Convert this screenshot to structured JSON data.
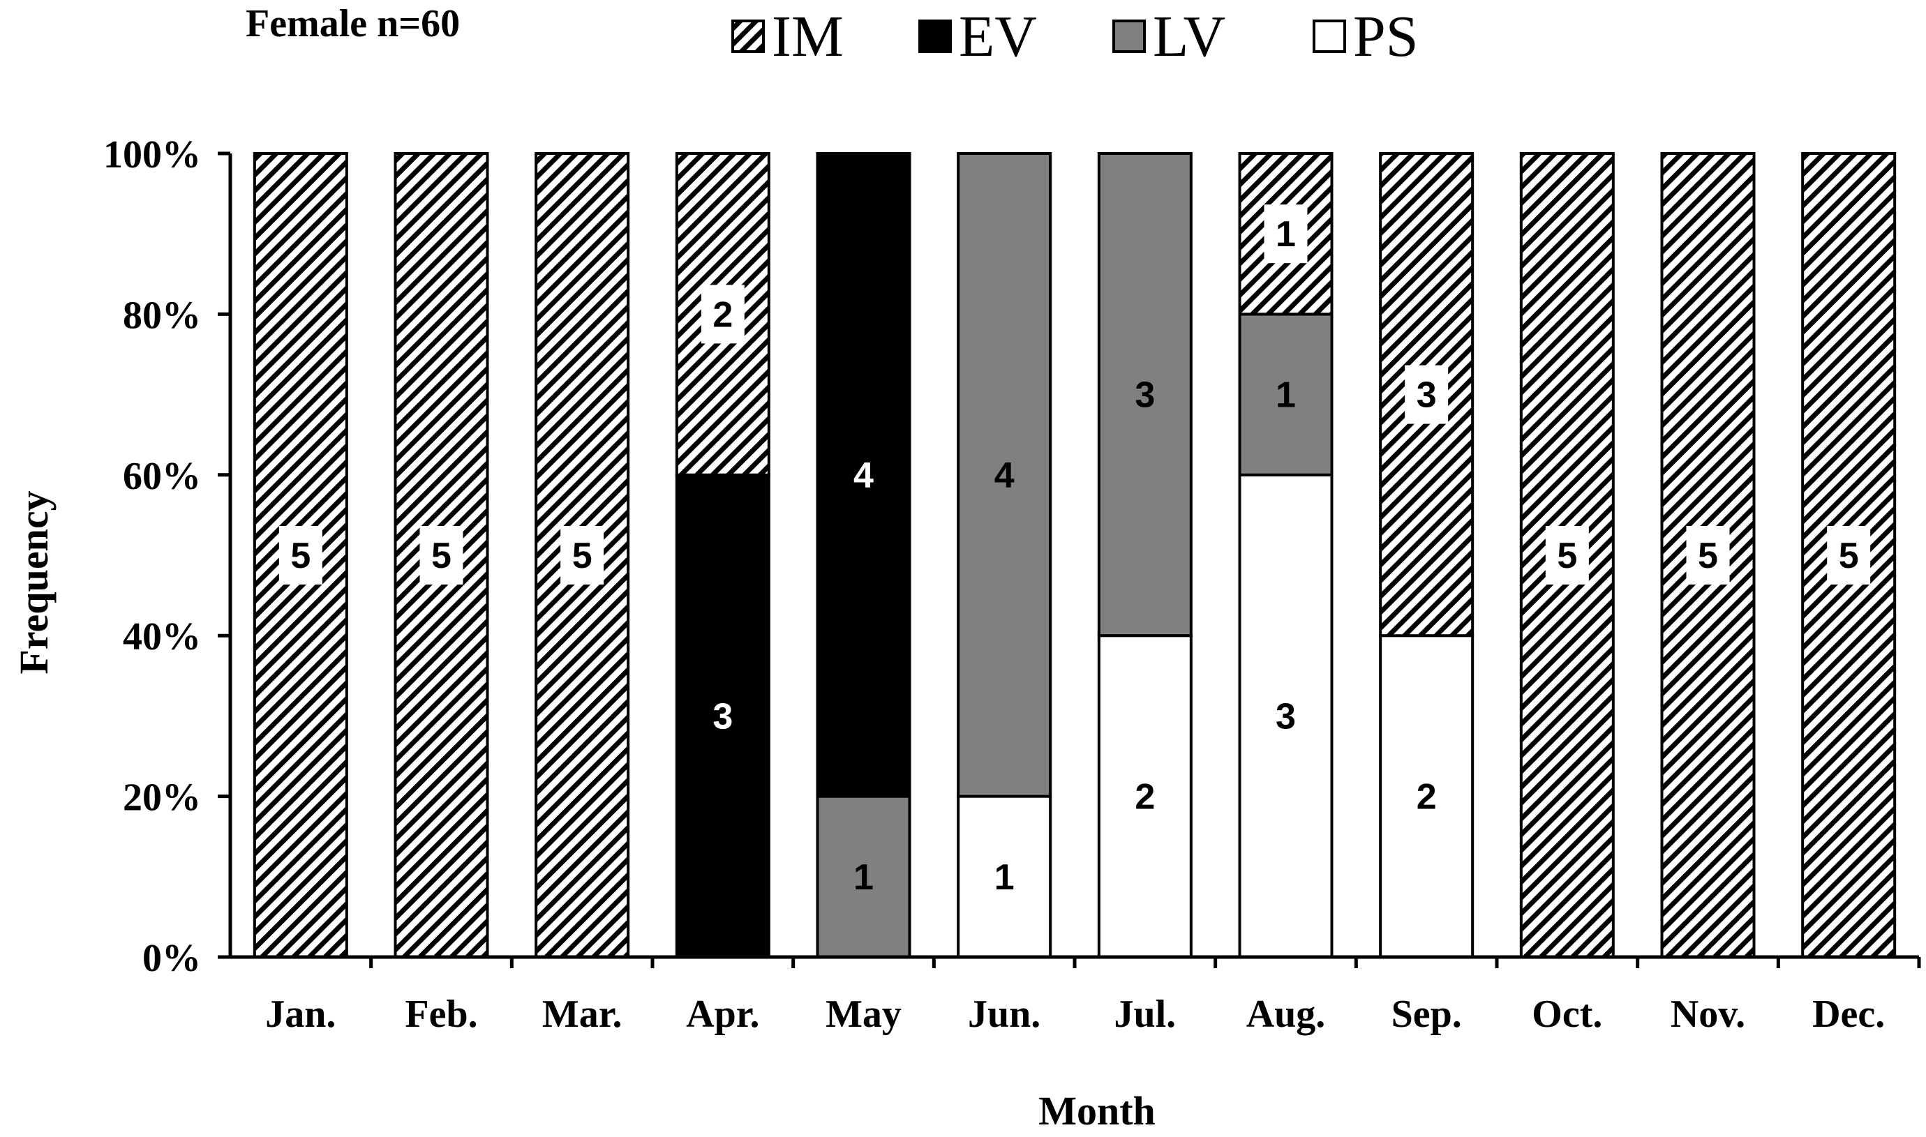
{
  "chart_data": {
    "type": "bar",
    "stacked": true,
    "percent": true,
    "title": "Female n=60",
    "xlabel": "Month",
    "ylabel": "Frequency",
    "categories": [
      "Jan.",
      "Feb.",
      "Mar.",
      "Apr.",
      "May",
      "Jun.",
      "Jul.",
      "Aug.",
      "Sep.",
      "Oct.",
      "Nov.",
      "Dec."
    ],
    "series": [
      {
        "name": "PS",
        "values": [
          0,
          0,
          0,
          0,
          0,
          1,
          2,
          3,
          2,
          0,
          0,
          0
        ],
        "fill": "#ffffff",
        "label_color": "#000000"
      },
      {
        "name": "LV",
        "values": [
          0,
          0,
          0,
          0,
          1,
          4,
          3,
          1,
          0,
          0,
          0,
          0
        ],
        "fill": "#808080",
        "label_color": "#000000"
      },
      {
        "name": "EV",
        "values": [
          0,
          0,
          0,
          3,
          4,
          0,
          0,
          0,
          0,
          0,
          0,
          0
        ],
        "fill": "#000000",
        "label_color": "#ffffff"
      },
      {
        "name": "IM",
        "values": [
          5,
          5,
          5,
          2,
          0,
          0,
          0,
          1,
          3,
          5,
          5,
          5
        ],
        "fill": "hatch",
        "label_color": "#000000"
      }
    ],
    "legend_order": [
      "IM",
      "EV",
      "LV",
      "PS"
    ],
    "y_ticks": [
      "0%",
      "20%",
      "40%",
      "60%",
      "80%",
      "100%"
    ],
    "ylim": [
      0,
      100
    ],
    "legend_position": "top",
    "grid": false
  }
}
